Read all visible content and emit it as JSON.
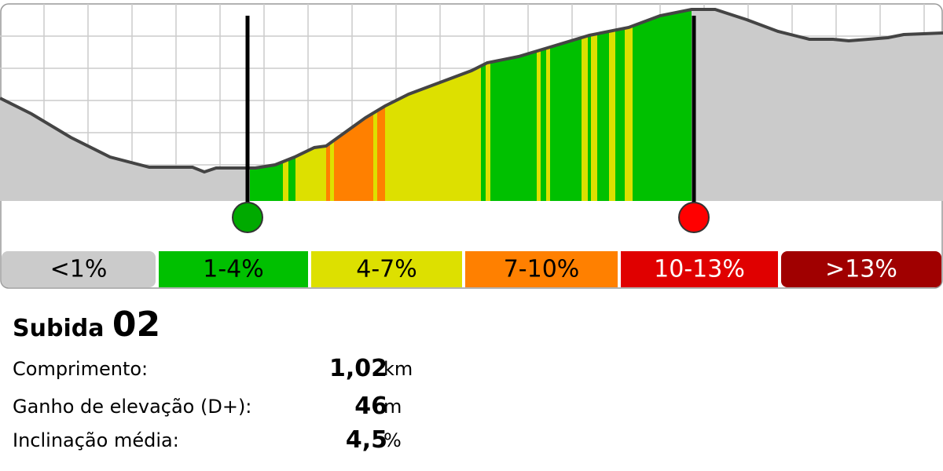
{
  "legend": [
    "<1%",
    "1-4%",
    "4-7%",
    "7-10%",
    "10-13%",
    ">13%"
  ],
  "climb": {
    "label": "Subida",
    "number": "02"
  },
  "stats": [
    {
      "label": "Comprimento:",
      "value": "1,02",
      "unit": "km"
    },
    {
      "label": "Ganho de elevação (D+):",
      "value": "46",
      "unit": "m"
    },
    {
      "label": "Inclinação média:",
      "value": "4,5",
      "unit": "%"
    }
  ]
}
